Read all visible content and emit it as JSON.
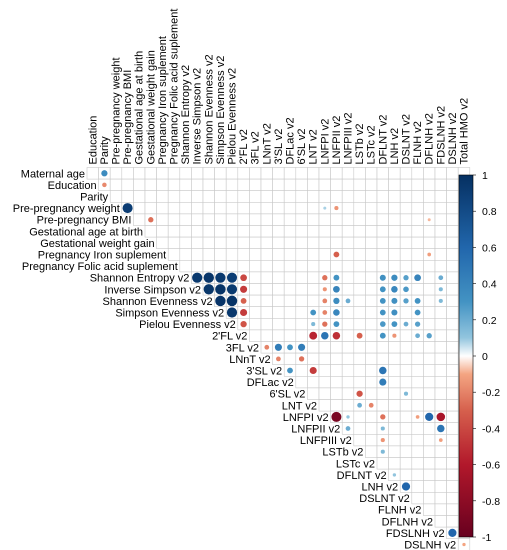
{
  "chart_data": {
    "type": "heatmap",
    "title": "",
    "style": "upper-triangle correlation circle plot (corrplot)",
    "grid": true,
    "legend": "right",
    "color_scale": {
      "low": "#67001F",
      "mid": "#FFFFFF",
      "high": "#053061",
      "range": [
        -1,
        1
      ],
      "ticks": [
        "1",
        "0.8",
        "0.6",
        "0.4",
        "0.2",
        "0",
        "-0.2",
        "-0.4",
        "-0.6",
        "-0.8",
        "-1"
      ]
    },
    "variables": [
      "Education",
      "Parity",
      "Pre-pregnancy weight",
      "Pre-pregnancy BMI",
      "Gestational age at birth",
      "Gestational weight gain",
      "Pregnancy Iron suplement",
      "Pregnancy Folic acid suplement",
      "Shannon Entropy v2",
      "Inverse Simpson v2",
      "Shannon Evenness v2",
      "Simpson Evenness v2",
      "Pielou Evenness v2",
      "2'FL v2",
      "3FL v2",
      "LNnT v2",
      "3'SL v2",
      "DFLac v2",
      "6'SL v2",
      "LNT v2",
      "LNFPI v2",
      "LNFPII v2",
      "LNFPIII v2",
      "LSTb v2",
      "LSTc v2",
      "DFLNT v2",
      "LNH v2",
      "DSLNT v2",
      "FLNH v2",
      "DFLNH v2",
      "FDSLNH v2",
      "DSLNH v2",
      "Total HMO v2"
    ],
    "row_labels": [
      "Maternal age",
      "Education",
      "Parity",
      "Pre-pregnancy weight",
      "Pre-pregnancy BMI",
      "Gestational age at birth",
      "Gestational weight gain",
      "Pregnancy Iron suplement",
      "Pregnancy Folic acid suplement",
      "Shannon Entropy v2",
      "Inverse Simpson v2",
      "Shannon Evenness v2",
      "Simpson Evenness v2",
      "Pielou Evenness v2",
      "2'FL v2",
      "3FL v2",
      "LNnT v2",
      "3'SL v2",
      "DFLac v2",
      "6'SL v2",
      "LNT v2",
      "LNFPI v2",
      "LNFPII v2",
      "LNFPIII v2",
      "LSTb v2",
      "LSTc v2",
      "DFLNT v2",
      "LNH v2",
      "DSLNT v2",
      "FLNH v2",
      "DFLNH v2",
      "FDSLNH v2",
      "DSLNH v2"
    ],
    "correlations": [
      {
        "row": "Maternal age",
        "col": "Parity",
        "r": 0.35
      },
      {
        "row": "Education",
        "col": "Parity",
        "r": -0.18
      },
      {
        "row": "Pre-pregnancy weight",
        "col": "Pre-pregnancy BMI",
        "r": 0.9
      },
      {
        "row": "Pre-pregnancy BMI",
        "col": "Gestational weight gain",
        "r": -0.25
      },
      {
        "row": "Pregnancy Iron suplement",
        "col": "LNFPII v2",
        "r": -0.3
      },
      {
        "row": "Pre-pregnancy weight",
        "col": "LNFPII v2",
        "r": -0.15
      },
      {
        "row": "Pre-pregnancy weight",
        "col": "LNFPI v2",
        "r": 0.08
      },
      {
        "row": "Pregnancy Iron suplement",
        "col": "DFLNH v2",
        "r": -0.12
      },
      {
        "row": "Pre-pregnancy BMI",
        "col": "DFLNH v2",
        "r": -0.08
      },
      {
        "row": "Shannon Entropy v2",
        "col": "Inverse Simpson v2",
        "r": 0.93
      },
      {
        "row": "Shannon Entropy v2",
        "col": "Shannon Evenness v2",
        "r": 0.96
      },
      {
        "row": "Shannon Entropy v2",
        "col": "Simpson Evenness v2",
        "r": 0.93
      },
      {
        "row": "Shannon Entropy v2",
        "col": "Pielou Evenness v2",
        "r": 0.9
      },
      {
        "row": "Shannon Entropy v2",
        "col": "2'FL v2",
        "r": -0.4
      },
      {
        "row": "Shannon Entropy v2",
        "col": "LNFPI v2",
        "r": -0.25
      },
      {
        "row": "Shannon Entropy v2",
        "col": "LNFPII v2",
        "r": 0.3
      },
      {
        "row": "Shannon Entropy v2",
        "col": "DFLNT v2",
        "r": 0.32
      },
      {
        "row": "Shannon Entropy v2",
        "col": "LNH v2",
        "r": 0.35
      },
      {
        "row": "Shannon Entropy v2",
        "col": "DSLNT v2",
        "r": 0.25
      },
      {
        "row": "Shannon Entropy v2",
        "col": "FLNH v2",
        "r": 0.4
      },
      {
        "row": "Shannon Entropy v2",
        "col": "FDSLNH v2",
        "r": 0.2
      },
      {
        "row": "Shannon Entropy v2",
        "col": "Total HMO v2",
        "r": -0.35
      },
      {
        "row": "Inverse Simpson v2",
        "col": "Shannon Evenness v2",
        "r": 0.95
      },
      {
        "row": "Inverse Simpson v2",
        "col": "Simpson Evenness v2",
        "r": 0.97
      },
      {
        "row": "Inverse Simpson v2",
        "col": "Pielou Evenness v2",
        "r": 0.92
      },
      {
        "row": "Inverse Simpson v2",
        "col": "2'FL v2",
        "r": -0.45
      },
      {
        "row": "Inverse Simpson v2",
        "col": "LNFPI v2",
        "r": -0.15
      },
      {
        "row": "Inverse Simpson v2",
        "col": "LNFPII v2",
        "r": 0.4
      },
      {
        "row": "Inverse Simpson v2",
        "col": "DFLNT v2",
        "r": 0.3
      },
      {
        "row": "Inverse Simpson v2",
        "col": "LNH v2",
        "r": 0.38
      },
      {
        "row": "Inverse Simpson v2",
        "col": "DSLNT v2",
        "r": 0.28
      },
      {
        "row": "Inverse Simpson v2",
        "col": "FDSLNH v2",
        "r": 0.15
      },
      {
        "row": "Inverse Simpson v2",
        "col": "Total HMO v2",
        "r": -0.3
      },
      {
        "row": "Shannon Evenness v2",
        "col": "Simpson Evenness v2",
        "r": 0.96
      },
      {
        "row": "Shannon Evenness v2",
        "col": "Pielou Evenness v2",
        "r": 0.97
      },
      {
        "row": "Shannon Evenness v2",
        "col": "2'FL v2",
        "r": -0.3
      },
      {
        "row": "Shannon Evenness v2",
        "col": "LNFPI v2",
        "r": -0.2
      },
      {
        "row": "Shannon Evenness v2",
        "col": "LNFPII v2",
        "r": 0.35
      },
      {
        "row": "Shannon Evenness v2",
        "col": "LNFPIII v2",
        "r": 0.2
      },
      {
        "row": "Shannon Evenness v2",
        "col": "DFLNT v2",
        "r": 0.3
      },
      {
        "row": "Shannon Evenness v2",
        "col": "LNH v2",
        "r": 0.32
      },
      {
        "row": "Shannon Evenness v2",
        "col": "DSLNT v2",
        "r": 0.25
      },
      {
        "row": "Shannon Evenness v2",
        "col": "FLNH v2",
        "r": 0.3
      },
      {
        "row": "Shannon Evenness v2",
        "col": "FDSLNH v2",
        "r": 0.15
      },
      {
        "row": "Shannon Evenness v2",
        "col": "Total HMO v2",
        "r": -0.3
      },
      {
        "row": "Simpson Evenness v2",
        "col": "Pielou Evenness v2",
        "r": 0.93
      },
      {
        "row": "Simpson Evenness v2",
        "col": "2'FL v2",
        "r": -0.45
      },
      {
        "row": "Simpson Evenness v2",
        "col": "LNT v2",
        "r": 0.3
      },
      {
        "row": "Simpson Evenness v2",
        "col": "LNFPI v2",
        "r": -0.2
      },
      {
        "row": "Simpson Evenness v2",
        "col": "LNFPII v2",
        "r": 0.38
      },
      {
        "row": "Simpson Evenness v2",
        "col": "DFLNT v2",
        "r": 0.3
      },
      {
        "row": "Simpson Evenness v2",
        "col": "LNH v2",
        "r": 0.33
      },
      {
        "row": "Simpson Evenness v2",
        "col": "FLNH v2",
        "r": 0.3
      },
      {
        "row": "Simpson Evenness v2",
        "col": "Total HMO v2",
        "r": -0.28
      },
      {
        "row": "Pielou Evenness v2",
        "col": "2'FL v2",
        "r": -0.35
      },
      {
        "row": "Pielou Evenness v2",
        "col": "LNT v2",
        "r": 0.15
      },
      {
        "row": "Pielou Evenness v2",
        "col": "LNFPI v2",
        "r": -0.25
      },
      {
        "row": "Pielou Evenness v2",
        "col": "LNFPII v2",
        "r": 0.3
      },
      {
        "row": "Pielou Evenness v2",
        "col": "DFLNT v2",
        "r": 0.28
      },
      {
        "row": "Pielou Evenness v2",
        "col": "LNH v2",
        "r": 0.3
      },
      {
        "row": "Pielou Evenness v2",
        "col": "DSLNT v2",
        "r": 0.2
      },
      {
        "row": "Pielou Evenness v2",
        "col": "FLNH v2",
        "r": 0.25
      },
      {
        "row": "Pielou Evenness v2",
        "col": "Total HMO v2",
        "r": -0.25
      },
      {
        "row": "2'FL v2",
        "col": "LNT v2",
        "r": -0.55
      },
      {
        "row": "2'FL v2",
        "col": "LNFPI v2",
        "r": 0.5
      },
      {
        "row": "2'FL v2",
        "col": "LNFPII v2",
        "r": -0.5
      },
      {
        "row": "2'FL v2",
        "col": "LSTb v2",
        "r": -0.3
      },
      {
        "row": "2'FL v2",
        "col": "DFLNT v2",
        "r": 0.3
      },
      {
        "row": "2'FL v2",
        "col": "LNH v2",
        "r": -0.15
      },
      {
        "row": "2'FL v2",
        "col": "FLNH v2",
        "r": 0.2
      },
      {
        "row": "2'FL v2",
        "col": "DFLNH v2",
        "r": 0.25
      },
      {
        "row": "2'FL v2",
        "col": "Total HMO v2",
        "r": 0.55
      },
      {
        "row": "3FL v2",
        "col": "LNnT v2",
        "r": -0.2
      },
      {
        "row": "3FL v2",
        "col": "3'SL v2",
        "r": 0.45
      },
      {
        "row": "3FL v2",
        "col": "DFLac v2",
        "r": 0.3
      },
      {
        "row": "3FL v2",
        "col": "6'SL v2",
        "r": 0.45
      },
      {
        "row": "LNnT v2",
        "col": "3'SL v2",
        "r": -0.2
      },
      {
        "row": "LNnT v2",
        "col": "6'SL v2",
        "r": -0.25
      },
      {
        "row": "3'SL v2",
        "col": "DFLac v2",
        "r": 0.3
      },
      {
        "row": "3'SL v2",
        "col": "LNT v2",
        "r": -0.45
      },
      {
        "row": "3'SL v2",
        "col": "DFLNT v2",
        "r": 0.5
      },
      {
        "row": "DFLac v2",
        "col": "DFLNT v2",
        "r": 0.45
      },
      {
        "row": "6'SL v2",
        "col": "LSTb v2",
        "r": -0.35
      },
      {
        "row": "6'SL v2",
        "col": "DSLNT v2",
        "r": 0.15
      },
      {
        "row": "LNT v2",
        "col": "LSTb v2",
        "r": 0.2
      },
      {
        "row": "LNT v2",
        "col": "LSTc v2",
        "r": -0.2
      },
      {
        "row": "LNFPI v2",
        "col": "LNFPII v2",
        "r": -0.9
      },
      {
        "row": "LNFPI v2",
        "col": "LNFPIII v2",
        "r": 0.1
      },
      {
        "row": "LNFPI v2",
        "col": "DFLNT v2",
        "r": -0.25
      },
      {
        "row": "LNFPI v2",
        "col": "FLNH v2",
        "r": -0.12
      },
      {
        "row": "LNFPI v2",
        "col": "DFLNH v2",
        "r": 0.6
      },
      {
        "row": "LNFPI v2",
        "col": "FDSLNH v2",
        "r": -0.65
      },
      {
        "row": "LNFPI v2",
        "col": "Total HMO v2",
        "r": 0.35
      },
      {
        "row": "LNFPII v2",
        "col": "LNFPIII v2",
        "r": 0.2
      },
      {
        "row": "LNFPII v2",
        "col": "DFLNT v2",
        "r": 0.15
      },
      {
        "row": "LNFPII v2",
        "col": "FDSLNH v2",
        "r": 0.5
      },
      {
        "row": "LNFPII v2",
        "col": "Total HMO v2",
        "r": -0.2
      },
      {
        "row": "LNFPIII v2",
        "col": "DFLNT v2",
        "r": -0.15
      },
      {
        "row": "LNFPIII v2",
        "col": "FDSLNH v2",
        "r": -0.12
      },
      {
        "row": "LNFPIII v2",
        "col": "Total HMO v2",
        "r": -0.3
      },
      {
        "row": "LSTb v2",
        "col": "DFLNT v2",
        "r": 0.15
      },
      {
        "row": "LSTb v2",
        "col": "Total HMO v2",
        "r": -0.12
      },
      {
        "row": "LSTc v2",
        "col": "Total HMO v2",
        "r": -0.15
      },
      {
        "row": "DFLNT v2",
        "col": "LNH v2",
        "r": 0.1
      },
      {
        "row": "DFLNT v2",
        "col": "Total HMO v2",
        "r": -0.2
      },
      {
        "row": "LNH v2",
        "col": "DSLNT v2",
        "r": 0.6
      },
      {
        "row": "LNH v2",
        "col": "Total HMO v2",
        "r": -0.15
      },
      {
        "row": "DSLNT v2",
        "col": "Total HMO v2",
        "r": -0.12
      },
      {
        "row": "FLNH v2",
        "col": "Total HMO v2",
        "r": -0.1
      },
      {
        "row": "DFLNH v2",
        "col": "Total HMO v2",
        "r": -0.1
      },
      {
        "row": "FDSLNH v2",
        "col": "DSLNH v2",
        "r": 0.6
      },
      {
        "row": "FDSLNH v2",
        "col": "Total HMO v2",
        "r": 0.4
      },
      {
        "row": "DSLNH v2",
        "col": "Total HMO v2",
        "r": -0.1
      }
    ]
  }
}
